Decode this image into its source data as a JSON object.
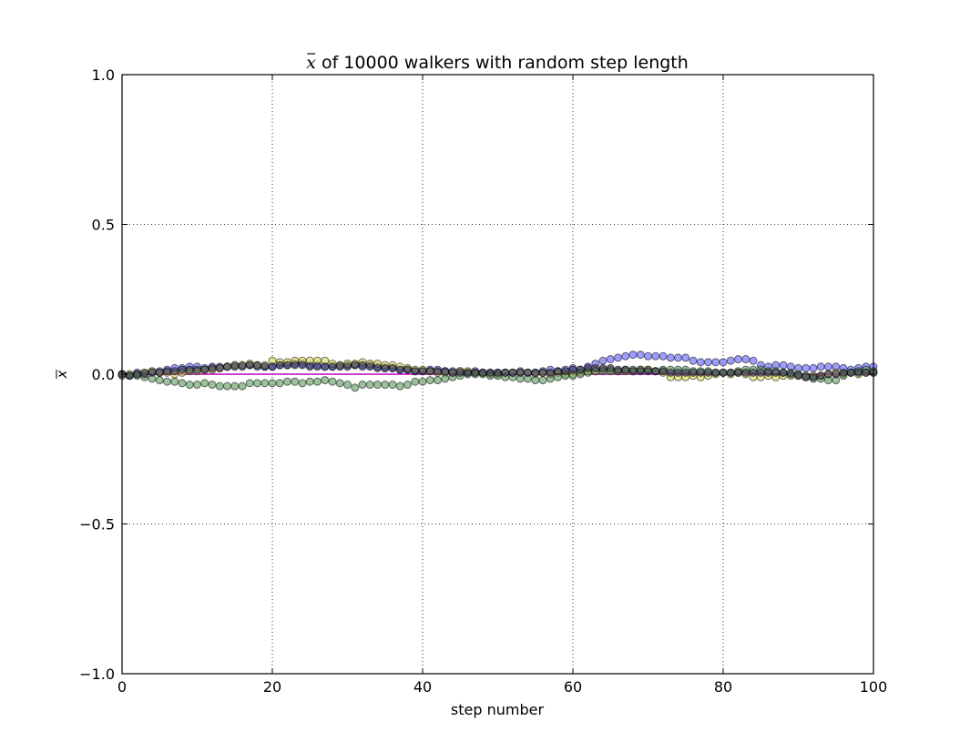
{
  "chart_data": {
    "type": "scatter",
    "title_prefix": "x",
    "title_rest": " of 10000 walkers with random step length",
    "xlabel": "step number",
    "ylabel": "x",
    "xlim": [
      0,
      100
    ],
    "ylim": [
      -1.0,
      1.0
    ],
    "xticks": [
      0,
      20,
      40,
      60,
      80,
      100
    ],
    "xtick_labels": [
      "0",
      "20",
      "40",
      "60",
      "80",
      "100"
    ],
    "yticks": [
      -1.0,
      -0.5,
      0.0,
      0.5,
      1.0
    ],
    "ytick_labels": [
      "−1.0",
      "−0.5",
      "0.0",
      "0.5",
      "1.0"
    ],
    "grid": true,
    "reference_line": {
      "y": 0.0,
      "color": "#c000c0"
    },
    "series": [
      {
        "color": "#5b5bff",
        "x": [
          0,
          1,
          2,
          3,
          4,
          5,
          6,
          7,
          8,
          9,
          10,
          11,
          12,
          13,
          14,
          15,
          16,
          17,
          18,
          19,
          20,
          21,
          22,
          23,
          24,
          25,
          26,
          27,
          28,
          29,
          30,
          31,
          32,
          33,
          34,
          35,
          36,
          37,
          38,
          39,
          40,
          41,
          42,
          43,
          44,
          45,
          46,
          47,
          48,
          49,
          50,
          51,
          52,
          53,
          54,
          55,
          56,
          57,
          58,
          59,
          60,
          61,
          62,
          63,
          64,
          65,
          66,
          67,
          68,
          69,
          70,
          71,
          72,
          73,
          74,
          75,
          76,
          77,
          78,
          79,
          80,
          81,
          82,
          83,
          84,
          85,
          86,
          87,
          88,
          89,
          90,
          91,
          92,
          93,
          94,
          95,
          96,
          97,
          98,
          99,
          100
        ],
        "y": [
          0.0,
          -0.005,
          0.005,
          0.005,
          0.008,
          0.01,
          0.015,
          0.02,
          0.02,
          0.025,
          0.025,
          0.02,
          0.025,
          0.025,
          0.025,
          0.03,
          0.03,
          0.03,
          0.025,
          0.025,
          0.025,
          0.03,
          0.03,
          0.035,
          0.035,
          0.03,
          0.03,
          0.025,
          0.025,
          0.03,
          0.03,
          0.03,
          0.025,
          0.03,
          0.025,
          0.02,
          0.02,
          0.015,
          0.015,
          0.01,
          0.01,
          0.015,
          0.015,
          0.01,
          0.01,
          0.01,
          0.005,
          0.01,
          0.005,
          0.005,
          0.005,
          0.005,
          0.005,
          0.01,
          0.005,
          0.005,
          0.01,
          0.015,
          0.01,
          0.015,
          0.02,
          0.015,
          0.025,
          0.035,
          0.045,
          0.05,
          0.055,
          0.06,
          0.065,
          0.065,
          0.06,
          0.06,
          0.06,
          0.055,
          0.055,
          0.055,
          0.045,
          0.04,
          0.04,
          0.04,
          0.04,
          0.045,
          0.05,
          0.05,
          0.045,
          0.03,
          0.025,
          0.03,
          0.03,
          0.025,
          0.02,
          0.02,
          0.02,
          0.025,
          0.025,
          0.025,
          0.02,
          0.015,
          0.02,
          0.025,
          0.025
        ]
      },
      {
        "color": "#d8d84a",
        "x": [
          0,
          1,
          2,
          3,
          4,
          5,
          6,
          7,
          8,
          9,
          10,
          11,
          12,
          13,
          14,
          15,
          16,
          17,
          18,
          19,
          20,
          21,
          22,
          23,
          24,
          25,
          26,
          27,
          28,
          29,
          30,
          31,
          32,
          33,
          34,
          35,
          36,
          37,
          38,
          39,
          40,
          41,
          42,
          43,
          44,
          45,
          46,
          47,
          48,
          49,
          50,
          51,
          52,
          53,
          54,
          55,
          56,
          57,
          58,
          59,
          60,
          61,
          62,
          63,
          64,
          65,
          66,
          67,
          68,
          69,
          70,
          71,
          72,
          73,
          74,
          75,
          76,
          77,
          78,
          79,
          80,
          81,
          82,
          83,
          84,
          85,
          86,
          87,
          88,
          89,
          90,
          91,
          92,
          93,
          94,
          95,
          96,
          97,
          98,
          99,
          100
        ],
        "y": [
          -0.005,
          0.0,
          0.0,
          0.005,
          0.01,
          0.005,
          0.005,
          0.0,
          0.005,
          0.01,
          0.01,
          0.015,
          0.015,
          0.02,
          0.025,
          0.03,
          0.03,
          0.035,
          0.03,
          0.03,
          0.045,
          0.04,
          0.04,
          0.045,
          0.045,
          0.045,
          0.045,
          0.045,
          0.035,
          0.03,
          0.035,
          0.035,
          0.04,
          0.035,
          0.035,
          0.03,
          0.03,
          0.025,
          0.02,
          0.015,
          0.015,
          0.01,
          0.005,
          0.005,
          0.005,
          0.01,
          0.01,
          0.005,
          0.005,
          0.0,
          0.0,
          0.005,
          0.005,
          0.005,
          0.005,
          0.0,
          0.005,
          0.0,
          0.005,
          0.0,
          0.0,
          0.005,
          0.01,
          0.01,
          0.015,
          0.015,
          0.01,
          0.01,
          0.01,
          0.015,
          0.015,
          0.01,
          0.005,
          -0.01,
          -0.01,
          -0.01,
          -0.005,
          -0.01,
          -0.005,
          0.0,
          0.005,
          0.0,
          0.005,
          0.0,
          -0.01,
          -0.01,
          -0.005,
          -0.01,
          -0.005,
          -0.005,
          -0.005,
          -0.01,
          -0.005,
          -0.005,
          0.0,
          0.005,
          0.0,
          0.005,
          0.0,
          0.005,
          0.005
        ]
      },
      {
        "color": "#5a9a5a",
        "x": [
          0,
          1,
          2,
          3,
          4,
          5,
          6,
          7,
          8,
          9,
          10,
          11,
          12,
          13,
          14,
          15,
          16,
          17,
          18,
          19,
          20,
          21,
          22,
          23,
          24,
          25,
          26,
          27,
          28,
          29,
          30,
          31,
          32,
          33,
          34,
          35,
          36,
          37,
          38,
          39,
          40,
          41,
          42,
          43,
          44,
          45,
          46,
          47,
          48,
          49,
          50,
          51,
          52,
          53,
          54,
          55,
          56,
          57,
          58,
          59,
          60,
          61,
          62,
          63,
          64,
          65,
          66,
          67,
          68,
          69,
          70,
          71,
          72,
          73,
          74,
          75,
          76,
          77,
          78,
          79,
          80,
          81,
          82,
          83,
          84,
          85,
          86,
          87,
          88,
          89,
          90,
          91,
          92,
          93,
          94,
          95,
          96,
          97,
          98,
          99,
          100
        ],
        "y": [
          0.0,
          -0.005,
          -0.005,
          -0.01,
          -0.015,
          -0.02,
          -0.025,
          -0.025,
          -0.03,
          -0.035,
          -0.035,
          -0.03,
          -0.035,
          -0.04,
          -0.04,
          -0.04,
          -0.04,
          -0.03,
          -0.03,
          -0.03,
          -0.03,
          -0.03,
          -0.025,
          -0.025,
          -0.03,
          -0.025,
          -0.025,
          -0.02,
          -0.025,
          -0.03,
          -0.035,
          -0.045,
          -0.035,
          -0.035,
          -0.035,
          -0.035,
          -0.035,
          -0.04,
          -0.035,
          -0.025,
          -0.025,
          -0.02,
          -0.02,
          -0.015,
          -0.01,
          -0.005,
          0.0,
          0.0,
          0.0,
          -0.005,
          -0.005,
          -0.01,
          -0.01,
          -0.015,
          -0.015,
          -0.02,
          -0.02,
          -0.015,
          -0.01,
          -0.005,
          -0.005,
          0.0,
          0.005,
          0.01,
          0.01,
          0.01,
          0.01,
          0.015,
          0.015,
          0.015,
          0.015,
          0.01,
          0.015,
          0.015,
          0.015,
          0.015,
          0.01,
          0.01,
          0.01,
          0.005,
          0.005,
          0.005,
          0.01,
          0.015,
          0.015,
          0.015,
          0.01,
          0.01,
          0.005,
          0.005,
          0.0,
          -0.005,
          -0.015,
          -0.015,
          -0.02,
          -0.02,
          -0.005,
          0.005,
          0.01,
          0.015,
          0.01
        ]
      },
      {
        "color": "#303050",
        "x": [
          0,
          1,
          2,
          3,
          4,
          5,
          6,
          7,
          8,
          9,
          10,
          11,
          12,
          13,
          14,
          15,
          16,
          17,
          18,
          19,
          20,
          21,
          22,
          23,
          24,
          25,
          26,
          27,
          28,
          29,
          30,
          31,
          32,
          33,
          34,
          35,
          36,
          37,
          38,
          39,
          40,
          41,
          42,
          43,
          44,
          45,
          46,
          47,
          48,
          49,
          50,
          51,
          52,
          53,
          54,
          55,
          56,
          57,
          58,
          59,
          60,
          61,
          62,
          63,
          64,
          65,
          66,
          67,
          68,
          69,
          70,
          71,
          72,
          73,
          74,
          75,
          76,
          77,
          78,
          79,
          80,
          81,
          82,
          83,
          84,
          85,
          86,
          87,
          88,
          89,
          90,
          91,
          92,
          93,
          94,
          95,
          96,
          97,
          98,
          99,
          100
        ],
        "y": [
          0.0,
          -0.005,
          0.0,
          0.0,
          0.005,
          0.005,
          0.01,
          0.01,
          0.015,
          0.015,
          0.015,
          0.015,
          0.02,
          0.02,
          0.025,
          0.025,
          0.025,
          0.03,
          0.03,
          0.025,
          0.025,
          0.03,
          0.03,
          0.03,
          0.03,
          0.025,
          0.025,
          0.025,
          0.025,
          0.025,
          0.025,
          0.03,
          0.03,
          0.025,
          0.02,
          0.02,
          0.02,
          0.015,
          0.015,
          0.01,
          0.01,
          0.01,
          0.01,
          0.01,
          0.005,
          0.005,
          0.005,
          0.005,
          0.005,
          0.005,
          0.005,
          0.005,
          0.005,
          0.005,
          0.005,
          0.005,
          0.005,
          0.005,
          0.01,
          0.01,
          0.015,
          0.015,
          0.02,
          0.02,
          0.02,
          0.02,
          0.015,
          0.015,
          0.01,
          0.01,
          0.01,
          0.01,
          0.01,
          0.005,
          0.005,
          0.005,
          0.005,
          0.005,
          0.005,
          0.005,
          0.005,
          0.005,
          0.005,
          0.005,
          0.005,
          0.005,
          0.005,
          0.005,
          0.005,
          0.0,
          -0.005,
          -0.01,
          -0.01,
          -0.005,
          0.0,
          0.0,
          0.005,
          0.005,
          0.005,
          0.005,
          0.005
        ]
      }
    ]
  }
}
